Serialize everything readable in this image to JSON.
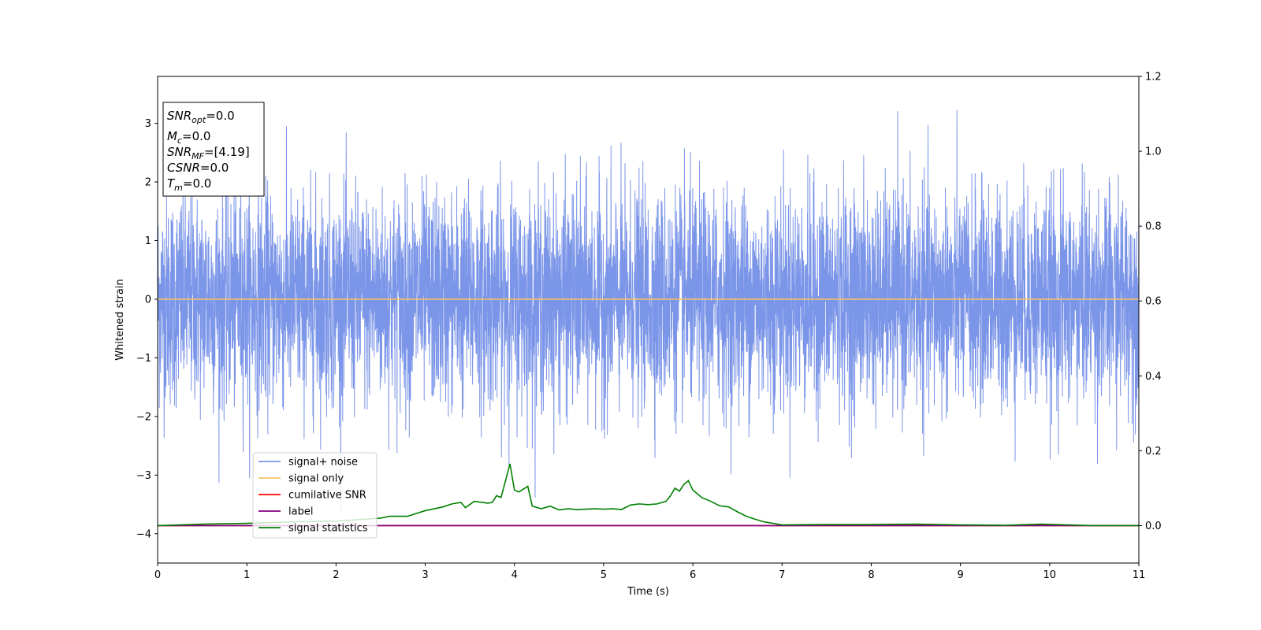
{
  "chart_data": {
    "type": "line",
    "xlabel": "Time (s)",
    "ylabel": "Whitened strain",
    "xlim": [
      0,
      11
    ],
    "ylim": [
      -4.5,
      3.8
    ],
    "y2lim": [
      -0.1,
      1.2
    ],
    "xticks": [
      "0",
      "1",
      "2",
      "3",
      "4",
      "5",
      "6",
      "7",
      "8",
      "9",
      "10",
      "11"
    ],
    "yticks": [
      "−4",
      "−3",
      "−2",
      "−1",
      "0",
      "1",
      "2",
      "3"
    ],
    "y2ticks": [
      "0.0",
      "0.2",
      "0.4",
      "0.6",
      "0.8",
      "1.0",
      "1.2"
    ],
    "grid": false,
    "legend_position": "lower-left",
    "annotation": {
      "lines": [
        {
          "base": "SNR",
          "sub": "opt",
          "value": "=0.0"
        },
        {
          "base": "M",
          "sub": "c",
          "value": "=0.0"
        },
        {
          "base": "SNR",
          "sub": "MF",
          "value": "=[4.19]"
        },
        {
          "base": "CSNR",
          "sub": "",
          "value": "=0.0"
        },
        {
          "base": "T",
          "sub": "m",
          "value": "=0.0"
        }
      ]
    },
    "series": [
      {
        "name": "signal+ noise",
        "color": "#7b95e8",
        "axis": "left",
        "kind": "noise",
        "std": 0.9
      },
      {
        "name": "signal only",
        "color": "#f5c26b",
        "axis": "left",
        "x": [
          0,
          11
        ],
        "y": [
          0,
          0
        ]
      },
      {
        "name": "cumilative SNR",
        "color": "#ff0000",
        "axis": "right",
        "x": [
          0,
          11
        ],
        "y": [
          0,
          0
        ]
      },
      {
        "name": "label",
        "color": "#800080",
        "axis": "right",
        "x": [
          0,
          11
        ],
        "y": [
          0,
          0
        ]
      },
      {
        "name": "signal statistics",
        "color": "#008000",
        "axis": "right",
        "x": [
          0,
          0.5,
          1.0,
          1.5,
          2.0,
          2.5,
          2.6,
          2.8,
          3.0,
          3.2,
          3.3,
          3.4,
          3.45,
          3.55,
          3.7,
          3.75,
          3.8,
          3.85,
          3.95,
          4.0,
          4.05,
          4.15,
          4.2,
          4.3,
          4.4,
          4.5,
          4.6,
          4.7,
          4.9,
          5.0,
          5.1,
          5.2,
          5.3,
          5.4,
          5.5,
          5.6,
          5.7,
          5.75,
          5.8,
          5.85,
          5.9,
          5.95,
          6.0,
          6.1,
          6.2,
          6.3,
          6.4,
          6.5,
          6.6,
          6.7,
          6.8,
          7.0,
          7.5,
          8.0,
          8.5,
          9.0,
          9.5,
          9.9,
          10.2,
          10.5,
          11
        ],
        "y": [
          0.0,
          0.004,
          0.006,
          0.01,
          0.012,
          0.02,
          0.025,
          0.025,
          0.04,
          0.05,
          0.058,
          0.062,
          0.048,
          0.065,
          0.06,
          0.062,
          0.08,
          0.075,
          0.165,
          0.095,
          0.09,
          0.105,
          0.052,
          0.045,
          0.052,
          0.042,
          0.045,
          0.043,
          0.045,
          0.044,
          0.045,
          0.043,
          0.055,
          0.058,
          0.056,
          0.058,
          0.065,
          0.08,
          0.1,
          0.092,
          0.11,
          0.12,
          0.095,
          0.075,
          0.065,
          0.053,
          0.05,
          0.037,
          0.025,
          0.017,
          0.01,
          0.002,
          0.003,
          0.003,
          0.004,
          0.002,
          0.001,
          0.004,
          0.002,
          0.0,
          0.0
        ]
      }
    ]
  }
}
